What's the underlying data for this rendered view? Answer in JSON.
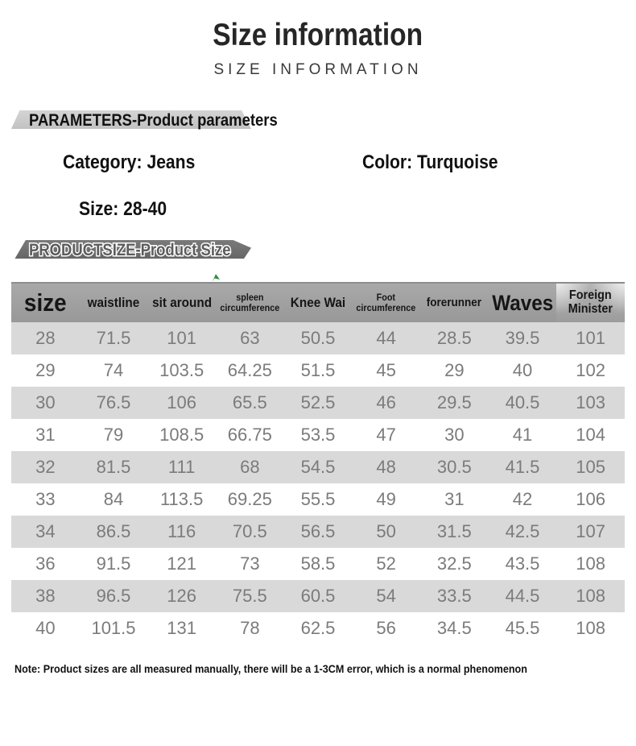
{
  "page": {
    "title": "Size information",
    "subtitle": "SIZE INFORMATION"
  },
  "banners": {
    "parameters": "PARAMETERS-Product parameters",
    "product_size": "PRODUCTSIZE-Product Size"
  },
  "parameters": {
    "category": "Category: Jeans",
    "color": "Color: Turquoise",
    "size": "Size: 28-40"
  },
  "size_table": {
    "columns": [
      "size",
      "waistline",
      "sit around",
      "spleen circumference",
      "Knee Wai",
      "Foot circumference",
      "forerunner",
      "Waves",
      "Foreign Minister"
    ],
    "rows": [
      [
        "28",
        "71.5",
        "101",
        "63",
        "50.5",
        "44",
        "28.5",
        "39.5",
        "101"
      ],
      [
        "29",
        "74",
        "103.5",
        "64.25",
        "51.5",
        "45",
        "29",
        "40",
        "102"
      ],
      [
        "30",
        "76.5",
        "106",
        "65.5",
        "52.5",
        "46",
        "29.5",
        "40.5",
        "103"
      ],
      [
        "31",
        "79",
        "108.5",
        "66.75",
        "53.5",
        "47",
        "30",
        "41",
        "104"
      ],
      [
        "32",
        "81.5",
        "111",
        "68",
        "54.5",
        "48",
        "30.5",
        "41.5",
        "105"
      ],
      [
        "33",
        "84",
        "113.5",
        "69.25",
        "55.5",
        "49",
        "31",
        "42",
        "106"
      ],
      [
        "34",
        "86.5",
        "116",
        "70.5",
        "56.5",
        "50",
        "31.5",
        "42.5",
        "107"
      ],
      [
        "36",
        "91.5",
        "121",
        "73",
        "58.5",
        "52",
        "32.5",
        "43.5",
        "108"
      ],
      [
        "38",
        "96.5",
        "126",
        "75.5",
        "60.5",
        "54",
        "33.5",
        "44.5",
        "108"
      ],
      [
        "40",
        "101.5",
        "131",
        "78",
        "62.5",
        "56",
        "34.5",
        "45.5",
        "108"
      ]
    ]
  },
  "note": "Note: Product sizes are all measured manually, there will be a 1-3CM error, which is a normal phenomenon",
  "colors": {
    "header_bg": "#9a9a9a",
    "row_stripe": "#d9d9d9",
    "banner_light": "#c8c8c8",
    "banner_dark": "#6e6e6e",
    "cell_text": "#7b7b7b",
    "accent_green": "#2f9140"
  }
}
